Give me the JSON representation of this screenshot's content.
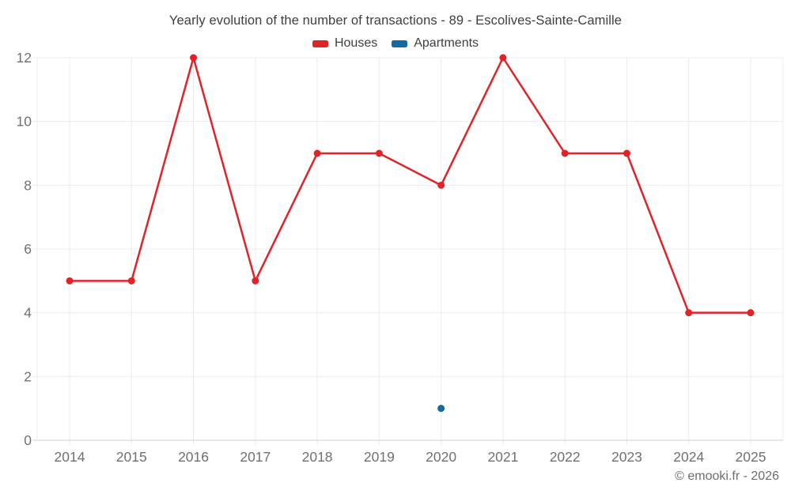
{
  "title": "Yearly evolution of the number of transactions - 89 - Escolives-Sainte-Camille",
  "copyright": "© emooki.fr - 2026",
  "colors": {
    "houses": "#e12328",
    "apartments": "#146a9e",
    "gridline": "#ececec",
    "axis_line": "#d2d2d2",
    "tick_label": "#707070",
    "background": "#ffffff"
  },
  "chart_data": {
    "type": "line",
    "title": "Yearly evolution of the number of transactions - 89 - Escolives-Sainte-Camille",
    "categories": [
      "2014",
      "2015",
      "2016",
      "2017",
      "2018",
      "2019",
      "2020",
      "2021",
      "2022",
      "2023",
      "2024",
      "2025"
    ],
    "series": [
      {
        "name": "Houses",
        "color": "#e12328",
        "values": [
          5,
          5,
          12,
          5,
          9,
          9,
          8,
          12,
          9,
          9,
          4,
          4
        ]
      },
      {
        "name": "Apartments",
        "color": "#146a9e",
        "values": [
          null,
          null,
          null,
          null,
          null,
          null,
          1,
          null,
          null,
          null,
          null,
          null
        ]
      }
    ],
    "xlabel": "",
    "ylabel": "",
    "ylim": [
      0,
      12
    ],
    "yticks": [
      0,
      2,
      4,
      6,
      8,
      10,
      12
    ],
    "grid": true,
    "legend_position": "top",
    "marker": "circle",
    "annotations": [
      "© emooki.fr - 2026"
    ]
  }
}
